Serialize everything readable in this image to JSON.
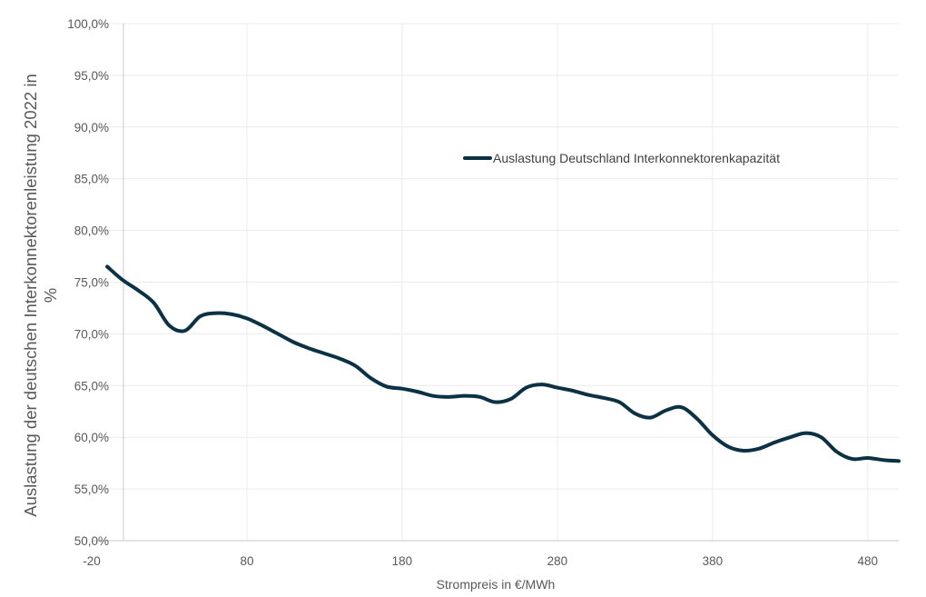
{
  "chart_data": {
    "type": "line",
    "title": "",
    "xlabel": "Strompreis in €/MWh",
    "ylabel_line1": "Auslastung der deutschen Interkonnektorenleistung 2022 in",
    "ylabel_line2": "%",
    "xlim": [
      -20,
      500
    ],
    "ylim": [
      50,
      100
    ],
    "x_ticks": [
      -20,
      80,
      180,
      280,
      380,
      480
    ],
    "x_tick_labels": [
      "-20",
      "80",
      "180",
      "280",
      "380",
      "480"
    ],
    "y_ticks": [
      50,
      55,
      60,
      65,
      70,
      75,
      80,
      85,
      90,
      95,
      100
    ],
    "y_tick_labels": [
      "50,0%",
      "55,0%",
      "60,0%",
      "65,0%",
      "70,0%",
      "75,0%",
      "80,0%",
      "85,0%",
      "90,0%",
      "95,0%",
      "100,0%"
    ],
    "grid": true,
    "legend_position": "top-center",
    "series": [
      {
        "name": "Auslastung Deutschland Interkonnektorenkapazität",
        "color": "#0b3144",
        "x": [
          -10,
          0,
          10,
          20,
          30,
          40,
          50,
          60,
          70,
          80,
          90,
          100,
          110,
          120,
          130,
          140,
          150,
          160,
          170,
          180,
          190,
          200,
          210,
          220,
          230,
          240,
          250,
          260,
          270,
          280,
          290,
          300,
          310,
          320,
          330,
          340,
          350,
          360,
          370,
          380,
          390,
          400,
          410,
          420,
          430,
          440,
          450,
          460,
          470,
          480,
          490,
          500
        ],
        "values": [
          76.5,
          75.2,
          74.2,
          73.0,
          70.8,
          70.3,
          71.7,
          72.0,
          71.9,
          71.5,
          70.8,
          70.0,
          69.2,
          68.6,
          68.1,
          67.6,
          66.9,
          65.7,
          64.9,
          64.7,
          64.4,
          64.0,
          63.9,
          64.0,
          63.9,
          63.4,
          63.7,
          64.8,
          65.1,
          64.8,
          64.5,
          64.1,
          63.8,
          63.4,
          62.3,
          61.9,
          62.6,
          62.9,
          61.8,
          60.2,
          59.1,
          58.7,
          58.9,
          59.5,
          60.0,
          60.4,
          60.0,
          58.6,
          57.9,
          58.0,
          57.8,
          57.7
        ]
      }
    ]
  }
}
